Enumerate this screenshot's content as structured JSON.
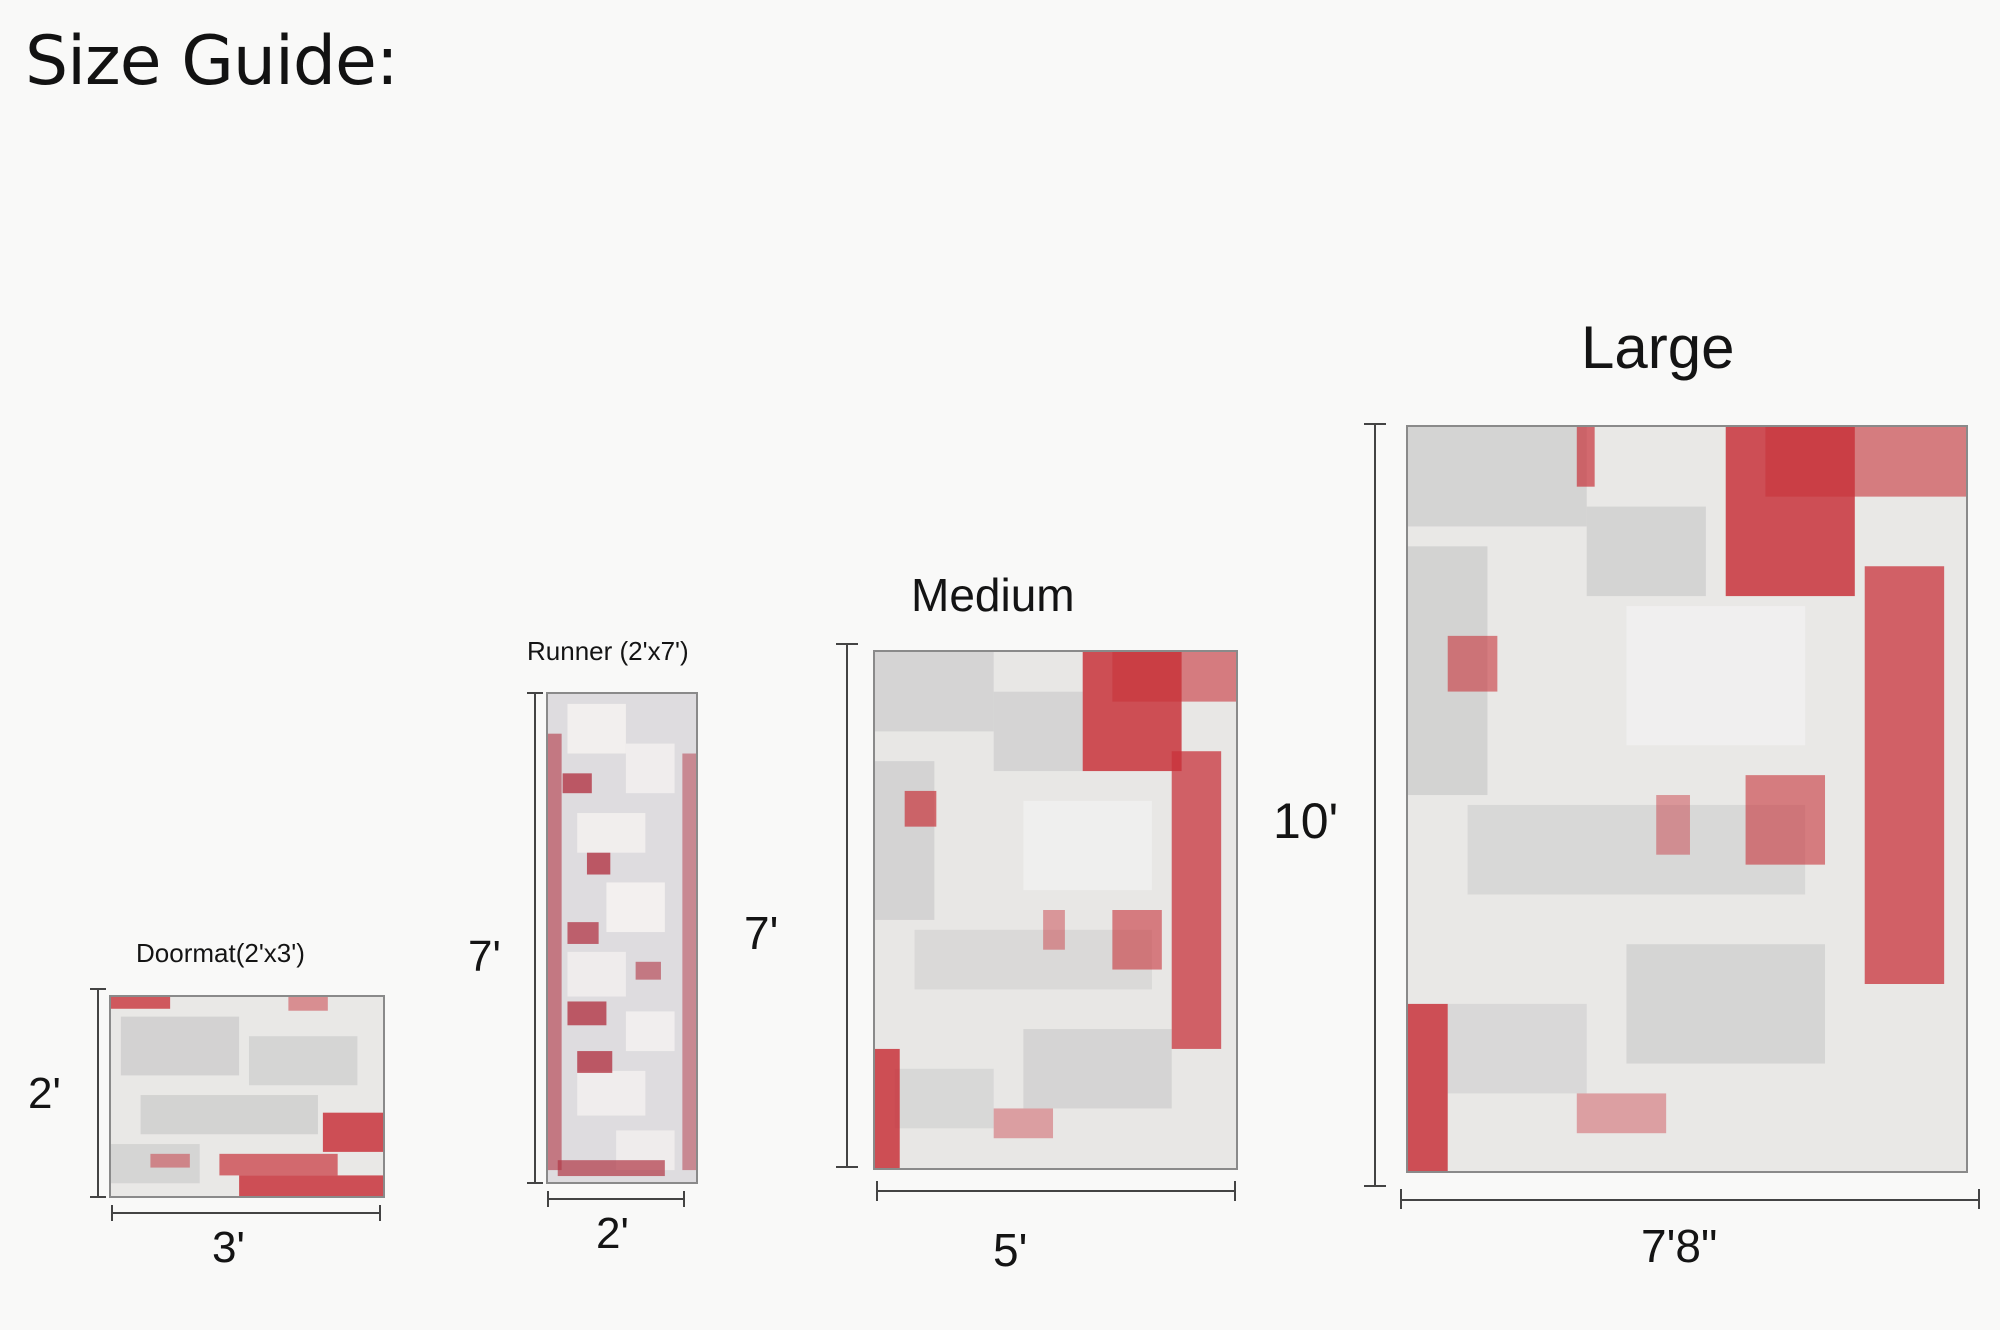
{
  "title": "Size Guide:",
  "colors": {
    "background": "#f9f9f8",
    "rug_base": "#e7e6e4",
    "rug_gray": "#bdbdbd",
    "rug_red": "#c8333b"
  },
  "rugs": {
    "doormat": {
      "label": "Doormat(2'x3')",
      "height": "2'",
      "width": "3'"
    },
    "runner": {
      "label": "Runner (2'x7')",
      "height": "7'",
      "width": "2'"
    },
    "medium": {
      "label": "Medium",
      "height": "7'",
      "width": "5'"
    },
    "large": {
      "label": "Large",
      "height": "10'",
      "width": "7'8\""
    }
  }
}
